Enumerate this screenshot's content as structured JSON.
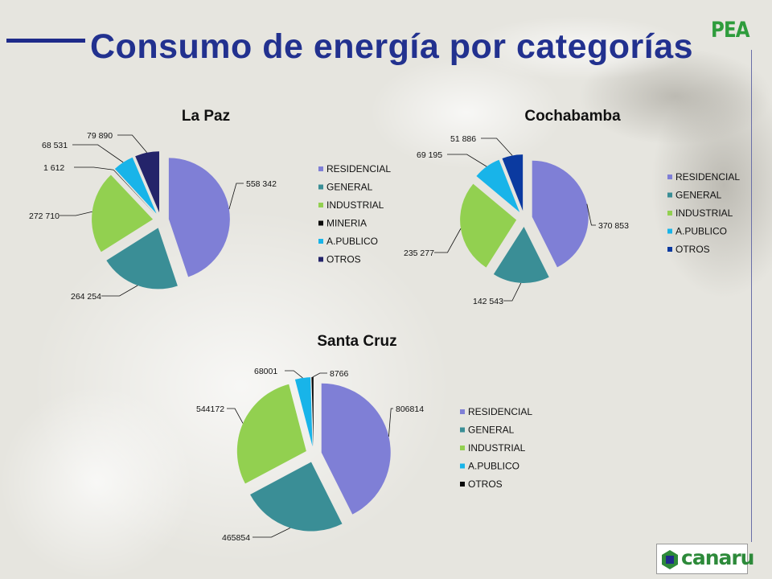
{
  "slide": {
    "title": "Consumo de energía por categorías",
    "brand": "PEA",
    "logo_text": "canaru"
  },
  "colors": {
    "RESIDENCIAL": "#7f7fd6",
    "GENERAL": "#3a8e96",
    "INDUSTRIAL": "#92d050",
    "MINERIA": "#0a0a0a",
    "A.PUBLICO": "#18b4e9",
    "OTROS_lapaz": "#24246a",
    "OTROS_cochabamba": "#0b3aa0",
    "OTROS_santacruz": "#0a0a0a",
    "title": "#22318f",
    "brand": "#2e9c3c"
  },
  "chart_data": [
    {
      "type": "pie",
      "title": "La Paz",
      "categories": [
        "RESIDENCIAL",
        "GENERAL",
        "INDUSTRIAL",
        "MINERIA",
        "A.PUBLICO",
        "OTROS"
      ],
      "values": [
        558342,
        264254,
        272710,
        1612,
        68531,
        79890
      ],
      "labels": [
        "558 342",
        "264 254",
        "272 710",
        "1 612",
        "68 531",
        "79 890"
      ],
      "legend": [
        "RESIDENCIAL",
        "GENERAL",
        "INDUSTRIAL",
        "MINERIA",
        "A.PUBLICO",
        "OTROS"
      ],
      "legend_position": "right",
      "exploded": true
    },
    {
      "type": "pie",
      "title": "Cochabamba",
      "categories": [
        "RESIDENCIAL",
        "GENERAL",
        "INDUSTRIAL",
        "A.PUBLICO",
        "OTROS"
      ],
      "values": [
        370853,
        142543,
        235277,
        69195,
        51886
      ],
      "labels": [
        "370 853",
        "142 543",
        "235 277",
        "69 195",
        "51 886"
      ],
      "legend": [
        "RESIDENCIAL",
        "GENERAL",
        "INDUSTRIAL",
        "A.PUBLICO",
        "OTROS"
      ],
      "legend_position": "right",
      "exploded": true
    },
    {
      "type": "pie",
      "title": "Santa Cruz",
      "categories": [
        "RESIDENCIAL",
        "GENERAL",
        "INDUSTRIAL",
        "A.PUBLICO",
        "OTROS"
      ],
      "values": [
        806814,
        465854,
        544172,
        68001,
        8766
      ],
      "labels": [
        "806814",
        "465854",
        "544172",
        "68001",
        "8766"
      ],
      "legend": [
        "RESIDENCIAL",
        "GENERAL",
        "INDUSTRIAL",
        "A.PUBLICO",
        "OTROS"
      ],
      "legend_position": "right",
      "exploded": true
    }
  ]
}
